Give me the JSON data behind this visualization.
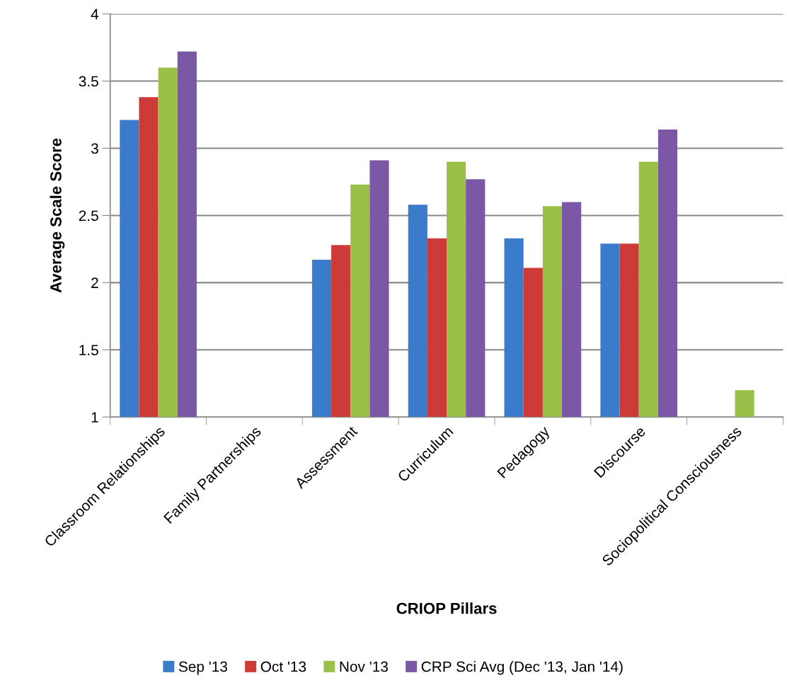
{
  "chart_data": {
    "type": "bar",
    "xlabel": "CRIOP Pillars",
    "ylabel": "Average Scale Score",
    "categories": [
      "Classroom Relationships",
      "Family Partnerships",
      "Assessment",
      "Curriculum",
      "Pedagogy",
      "Discourse",
      "Sociopolitical Consciousness"
    ],
    "series": [
      {
        "name": "Sep '13",
        "color": "#3a7bcb",
        "values": [
          3.21,
          null,
          2.17,
          2.58,
          2.33,
          2.29,
          null
        ]
      },
      {
        "name": "Oct '13",
        "color": "#cc3b37",
        "values": [
          3.38,
          null,
          2.28,
          2.33,
          2.11,
          2.29,
          null
        ]
      },
      {
        "name": "Nov '13",
        "color": "#9bc04a",
        "values": [
          3.6,
          null,
          2.73,
          2.9,
          2.57,
          2.9,
          1.2
        ]
      },
      {
        "name": "CRP Sci Avg (Dec '13, Jan '14)",
        "color": "#7a58a6",
        "values": [
          3.72,
          null,
          2.91,
          2.77,
          2.6,
          3.14,
          null
        ]
      }
    ],
    "ylim": [
      1,
      4
    ],
    "yticks": [
      1,
      1.5,
      2,
      2.5,
      3,
      3.5,
      4
    ],
    "grid": "y",
    "legend": "bottom"
  }
}
